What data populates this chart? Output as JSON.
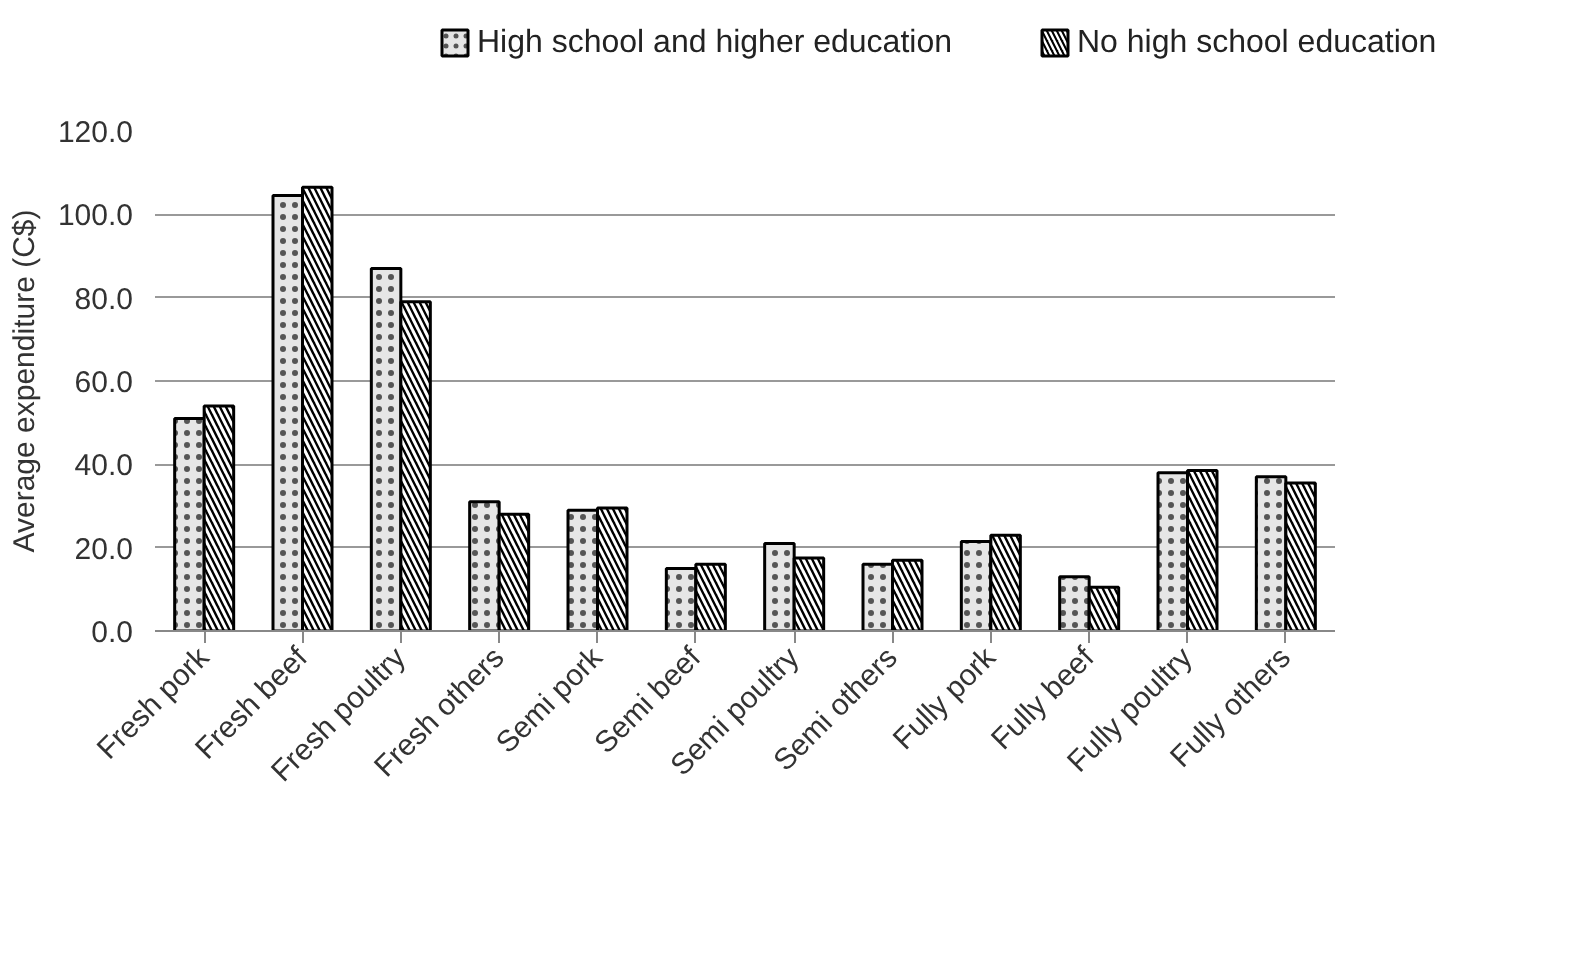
{
  "chart_data": {
    "type": "bar",
    "ylabel": "Average expenditure (C$)",
    "categories": [
      "Fresh pork",
      "Fresh beef",
      "Fresh poultry",
      "Fresh others",
      "Semi pork",
      "Semi beef",
      "Semi poultry",
      "Semi others",
      "Fully pork",
      "Fully beef",
      "Fully poultry",
      "Fully others"
    ],
    "series": [
      {
        "name": "High school and higher education",
        "color": "#e6e6e6",
        "values": [
          51,
          104.5,
          87,
          31,
          29,
          15,
          21,
          16,
          21.5,
          13,
          38,
          37
        ]
      },
      {
        "name": "No high school education",
        "color": "#000000",
        "values": [
          54,
          106.5,
          79,
          28,
          29.5,
          16,
          17.5,
          17,
          23,
          10.5,
          38.5,
          35.5
        ]
      }
    ],
    "ylim": [
      0,
      120
    ],
    "yticks": [
      {
        "value": 0,
        "label": "0.0"
      },
      {
        "value": 20,
        "label": "20.0"
      },
      {
        "value": 40,
        "label": "40.0"
      },
      {
        "value": 60,
        "label": "60.0"
      },
      {
        "value": 80,
        "label": "80.0"
      },
      {
        "value": 100,
        "label": "100.0"
      },
      {
        "value": 120,
        "label": "120.0"
      }
    ],
    "grid": "y",
    "legend": "top"
  }
}
